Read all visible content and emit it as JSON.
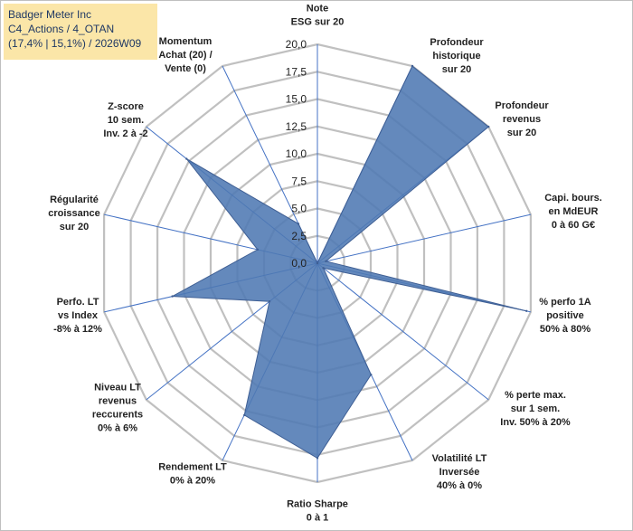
{
  "header": {
    "line1": "Badger Meter Inc",
    "line2": "C4_Actions / 4_OTAN",
    "line3": "(17,4% | 15,1%) / 2026W09"
  },
  "colors": {
    "fill": "#4f79b3",
    "stroke": "#3f5f94",
    "grid": "#c0c0c0",
    "spoke": "#4472c4",
    "title_bg": "#fbe6a8"
  },
  "chart_data": {
    "type": "radar",
    "rmax": 20,
    "ticks": [
      "0,0",
      "2,5",
      "5,0",
      "7,5",
      "10,0",
      "12,5",
      "15,0",
      "17,5",
      "20,0"
    ],
    "axes": [
      {
        "label": [
          "Note",
          "ESG sur 20"
        ],
        "value": 0.0
      },
      {
        "label": [
          "Profondeur",
          "historique",
          "sur 20"
        ],
        "value": 20.0
      },
      {
        "label": [
          "Profondeur",
          "revenus",
          "sur 20"
        ],
        "value": 20.0
      },
      {
        "label": [
          "Capi. bours.",
          "en MdEUR",
          "0 à 60 G€"
        ],
        "value": 0.8
      },
      {
        "label": [
          "% perfo 1A",
          "positive",
          "50% à 80%"
        ],
        "value": 19.6
      },
      {
        "label": [
          "% perte max.",
          "sur 1 sem.",
          "Inv. 50% à 20%"
        ],
        "value": 0.7
      },
      {
        "label": [
          "Volatilité LT",
          "Inversée",
          "40% à 0%"
        ],
        "value": 11.3
      },
      {
        "label": [
          "Ratio Sharpe",
          "0 à 1"
        ],
        "value": 17.8
      },
      {
        "label": [
          "Rendement LT",
          "0% à 20%"
        ],
        "value": 15.4
      },
      {
        "label": [
          "Niveau LT",
          "revenus",
          "reccurents",
          "0% à 6%"
        ],
        "value": 5.6
      },
      {
        "label": [
          "Perfo. LT",
          "vs Index",
          "-8% à 12%"
        ],
        "value": 13.6
      },
      {
        "label": [
          "Régularité",
          "croissance",
          "sur 20"
        ],
        "value": 5.6
      },
      {
        "label": [
          "Z-score",
          "10 sem.",
          "Inv. 2 à -2"
        ],
        "value": 15.3
      },
      {
        "label": [
          "Momentum",
          "Achat (20) /",
          "Vente (0)"
        ],
        "value": 4.0
      }
    ]
  }
}
